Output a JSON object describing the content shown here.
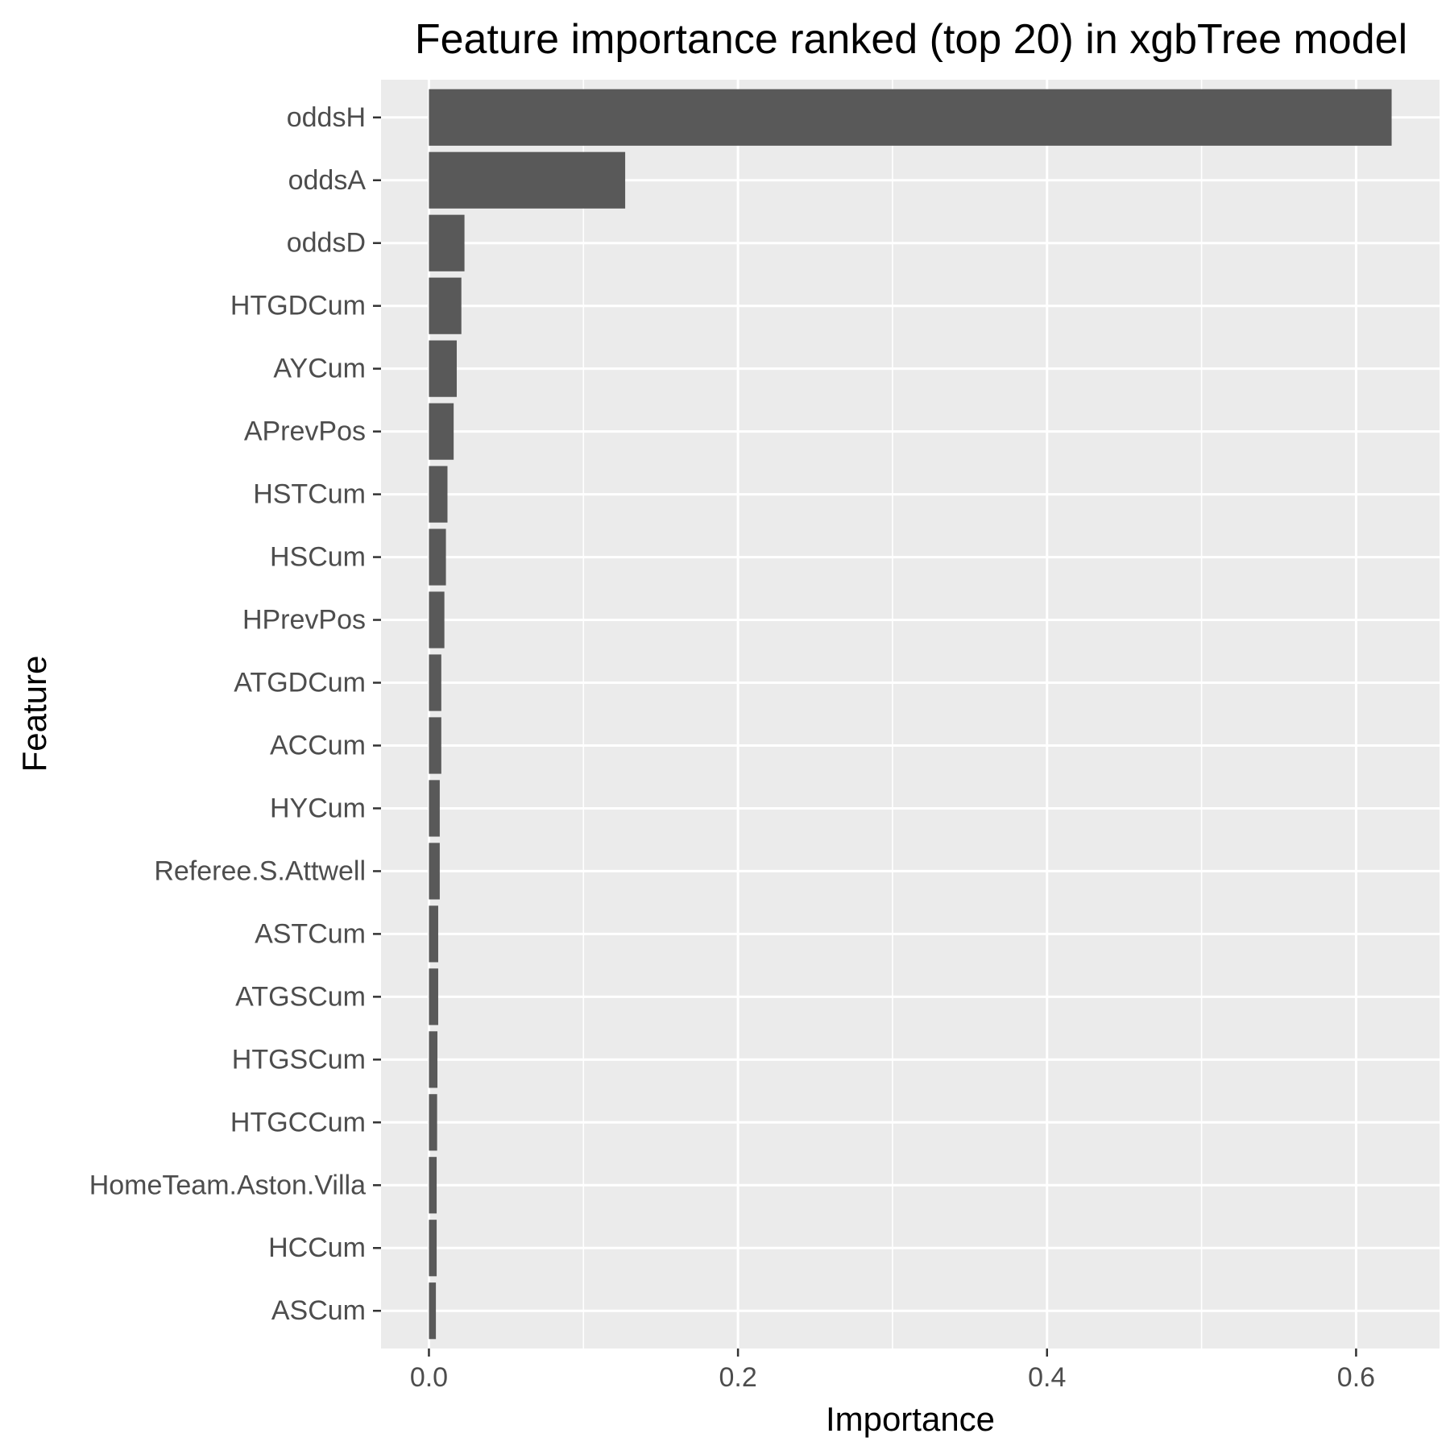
{
  "chart_data": {
    "type": "bar",
    "orientation": "horizontal",
    "title": "Feature importance ranked (top 20) in xgbTree model",
    "xlabel": "Importance",
    "ylabel": "Feature",
    "categories": [
      "oddsH",
      "oddsA",
      "oddsD",
      "HTGDCum",
      "AYCum",
      "APrevPos",
      "HSTCum",
      "HSCum",
      "HPrevPos",
      "ATGDCum",
      "ACCum",
      "HYCum",
      "Referee.S.Attwell",
      "ASTCum",
      "ATGSCum",
      "HTGSCum",
      "HTGCCum",
      "HomeTeam.Aston.Villa",
      "HCCum",
      "ASCum"
    ],
    "values": [
      0.623,
      0.127,
      0.023,
      0.021,
      0.018,
      0.016,
      0.012,
      0.011,
      0.01,
      0.008,
      0.008,
      0.007,
      0.007,
      0.006,
      0.006,
      0.0055,
      0.0053,
      0.005,
      0.005,
      0.0045
    ],
    "xlim": [
      -0.031,
      0.654
    ],
    "xticks": [
      0.0,
      0.2,
      0.4,
      0.6
    ],
    "xtick_labels": [
      "0.0",
      "0.2",
      "0.4",
      "0.6"
    ],
    "grid": true,
    "legend": "none",
    "colors": {
      "bar": "#595959",
      "panel_background": "#ebebeb",
      "grid_line": "#ffffff",
      "tick_text": "#4d4d4d",
      "tick_mark": "#333333",
      "title_text": "#000000"
    }
  }
}
